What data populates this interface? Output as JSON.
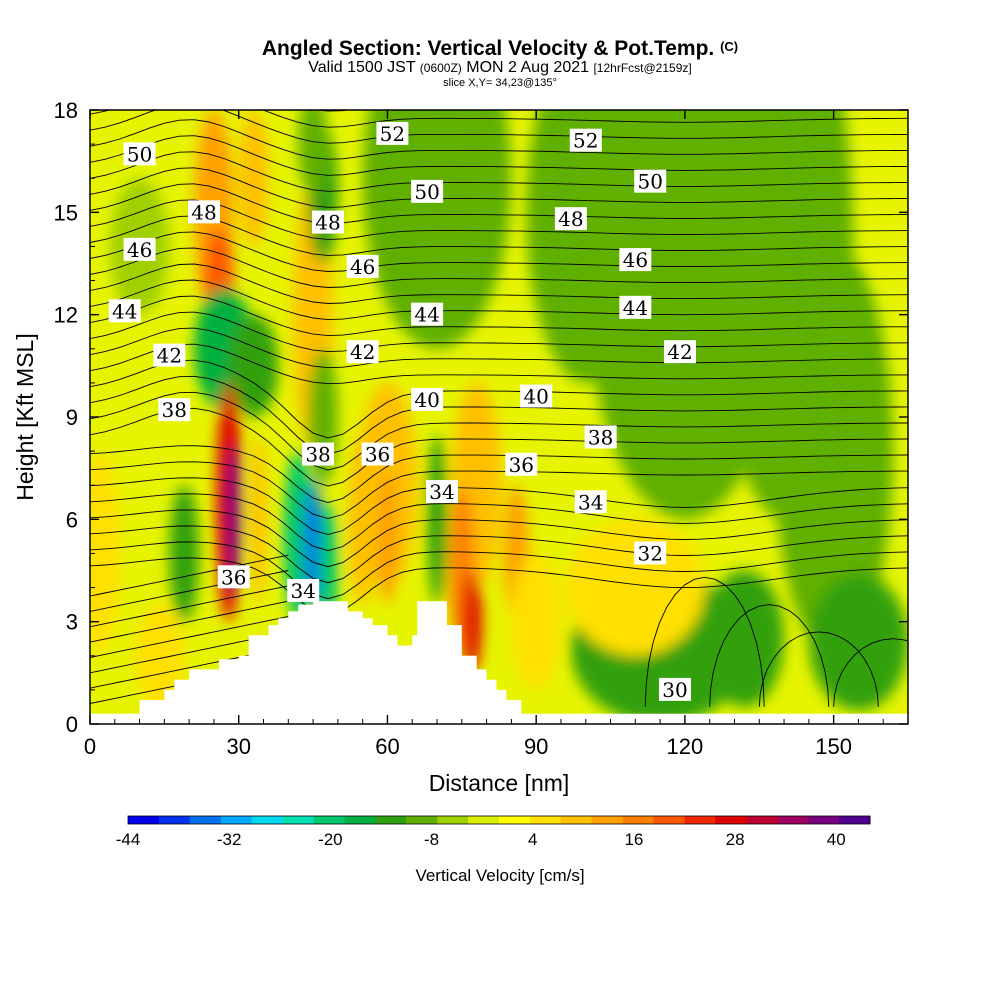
{
  "header": {
    "title": "Angled Section: Vertical Velocity & Pot.Temp.",
    "title_tag": "(C)",
    "valid_a": "Valid 1500 JST",
    "valid_utc": "(0600Z)",
    "valid_b": "MON 2 Aug 2021",
    "forecast": "[12hrFcst@2159z]",
    "slice": "slice X,Y= 34,23@135°"
  },
  "chart_data": {
    "type": "heatmap",
    "xlabel": "Distance [nm]",
    "ylabel": "Height [Kft MSL]",
    "xlim": [
      0,
      165
    ],
    "ylim": [
      0,
      18
    ],
    "xticks": [
      0,
      30,
      60,
      90,
      120,
      150
    ],
    "yticks": [
      0,
      3,
      6,
      9,
      12,
      15,
      18
    ],
    "colorbar": {
      "label": "Vertical Velocity [cm/s]",
      "min": -44,
      "max": 44,
      "ticks": [
        -44,
        -32,
        -20,
        -8,
        4,
        16,
        28,
        40
      ],
      "colors": [
        "#0000ee",
        "#0030f0",
        "#0070f0",
        "#00aaff",
        "#00d8f0",
        "#00e0b0",
        "#00c870",
        "#00b040",
        "#30a010",
        "#60b000",
        "#a0d000",
        "#d8f000",
        "#ffff00",
        "#ffe000",
        "#ffc000",
        "#ffa000",
        "#ff8000",
        "#ff5800",
        "#f02800",
        "#e00000",
        "#c00030",
        "#a00060",
        "#7a0080",
        "#500090"
      ]
    },
    "terrain_profile": [
      [
        0,
        0.3
      ],
      [
        10,
        0.3
      ],
      [
        10,
        0.7
      ],
      [
        15,
        0.7
      ],
      [
        15,
        1.0
      ],
      [
        17,
        1.0
      ],
      [
        17,
        1.3
      ],
      [
        20,
        1.3
      ],
      [
        20,
        1.6
      ],
      [
        26,
        1.6
      ],
      [
        26,
        1.9
      ],
      [
        30,
        1.9
      ],
      [
        30,
        2.0
      ],
      [
        32,
        2.0
      ],
      [
        32,
        2.6
      ],
      [
        36,
        2.6
      ],
      [
        36,
        2.9
      ],
      [
        38,
        2.9
      ],
      [
        38,
        3.1
      ],
      [
        40,
        3.1
      ],
      [
        40,
        3.3
      ],
      [
        42,
        3.3
      ],
      [
        42,
        3.5
      ],
      [
        45,
        3.5
      ],
      [
        45,
        3.6
      ],
      [
        52,
        3.6
      ],
      [
        52,
        3.3
      ],
      [
        55,
        3.3
      ],
      [
        55,
        3.1
      ],
      [
        57,
        3.1
      ],
      [
        57,
        2.9
      ],
      [
        60,
        2.9
      ],
      [
        60,
        2.6
      ],
      [
        62,
        2.6
      ],
      [
        62,
        2.3
      ],
      [
        65,
        2.3
      ],
      [
        65,
        2.6
      ],
      [
        66,
        2.6
      ],
      [
        66,
        3.6
      ],
      [
        72,
        3.6
      ],
      [
        72,
        2.9
      ],
      [
        75,
        2.9
      ],
      [
        75,
        2.0
      ],
      [
        78,
        2.0
      ],
      [
        78,
        1.6
      ],
      [
        80,
        1.6
      ],
      [
        80,
        1.3
      ],
      [
        82,
        1.3
      ],
      [
        82,
        1.0
      ],
      [
        84,
        1.0
      ],
      [
        84,
        0.7
      ],
      [
        87,
        0.7
      ],
      [
        87,
        0.3
      ],
      [
        165,
        0.3
      ]
    ],
    "theta_contour_labels": [
      {
        "value": "50",
        "x": 10,
        "y": 16.7
      },
      {
        "value": "48",
        "x": 23,
        "y": 15.0
      },
      {
        "value": "46",
        "x": 10,
        "y": 13.9
      },
      {
        "value": "44",
        "x": 7,
        "y": 12.1
      },
      {
        "value": "42",
        "x": 16,
        "y": 10.8
      },
      {
        "value": "38",
        "x": 17,
        "y": 9.2
      },
      {
        "value": "36",
        "x": 29,
        "y": 4.3
      },
      {
        "value": "34",
        "x": 43,
        "y": 3.9
      },
      {
        "value": "38",
        "x": 46,
        "y": 7.9
      },
      {
        "value": "36",
        "x": 58,
        "y": 7.9
      },
      {
        "value": "34",
        "x": 71,
        "y": 6.8
      },
      {
        "value": "52",
        "x": 61,
        "y": 17.3
      },
      {
        "value": "50",
        "x": 68,
        "y": 15.6
      },
      {
        "value": "48",
        "x": 48,
        "y": 14.7
      },
      {
        "value": "46",
        "x": 55,
        "y": 13.4
      },
      {
        "value": "44",
        "x": 68,
        "y": 12.0
      },
      {
        "value": "42",
        "x": 55,
        "y": 10.9
      },
      {
        "value": "40",
        "x": 68,
        "y": 9.5
      },
      {
        "value": "40",
        "x": 90,
        "y": 9.6
      },
      {
        "value": "38",
        "x": 103,
        "y": 8.4
      },
      {
        "value": "36",
        "x": 87,
        "y": 7.6
      },
      {
        "value": "34",
        "x": 101,
        "y": 6.5
      },
      {
        "value": "32",
        "x": 113,
        "y": 5.0
      },
      {
        "value": "30",
        "x": 118,
        "y": 1.0
      },
      {
        "value": "52",
        "x": 100,
        "y": 17.1
      },
      {
        "value": "50",
        "x": 113,
        "y": 15.9
      },
      {
        "value": "48",
        "x": 97,
        "y": 14.8
      },
      {
        "value": "46",
        "x": 110,
        "y": 13.6
      },
      {
        "value": "44",
        "x": 110,
        "y": 12.2
      },
      {
        "value": "42",
        "x": 119,
        "y": 10.9
      }
    ]
  }
}
